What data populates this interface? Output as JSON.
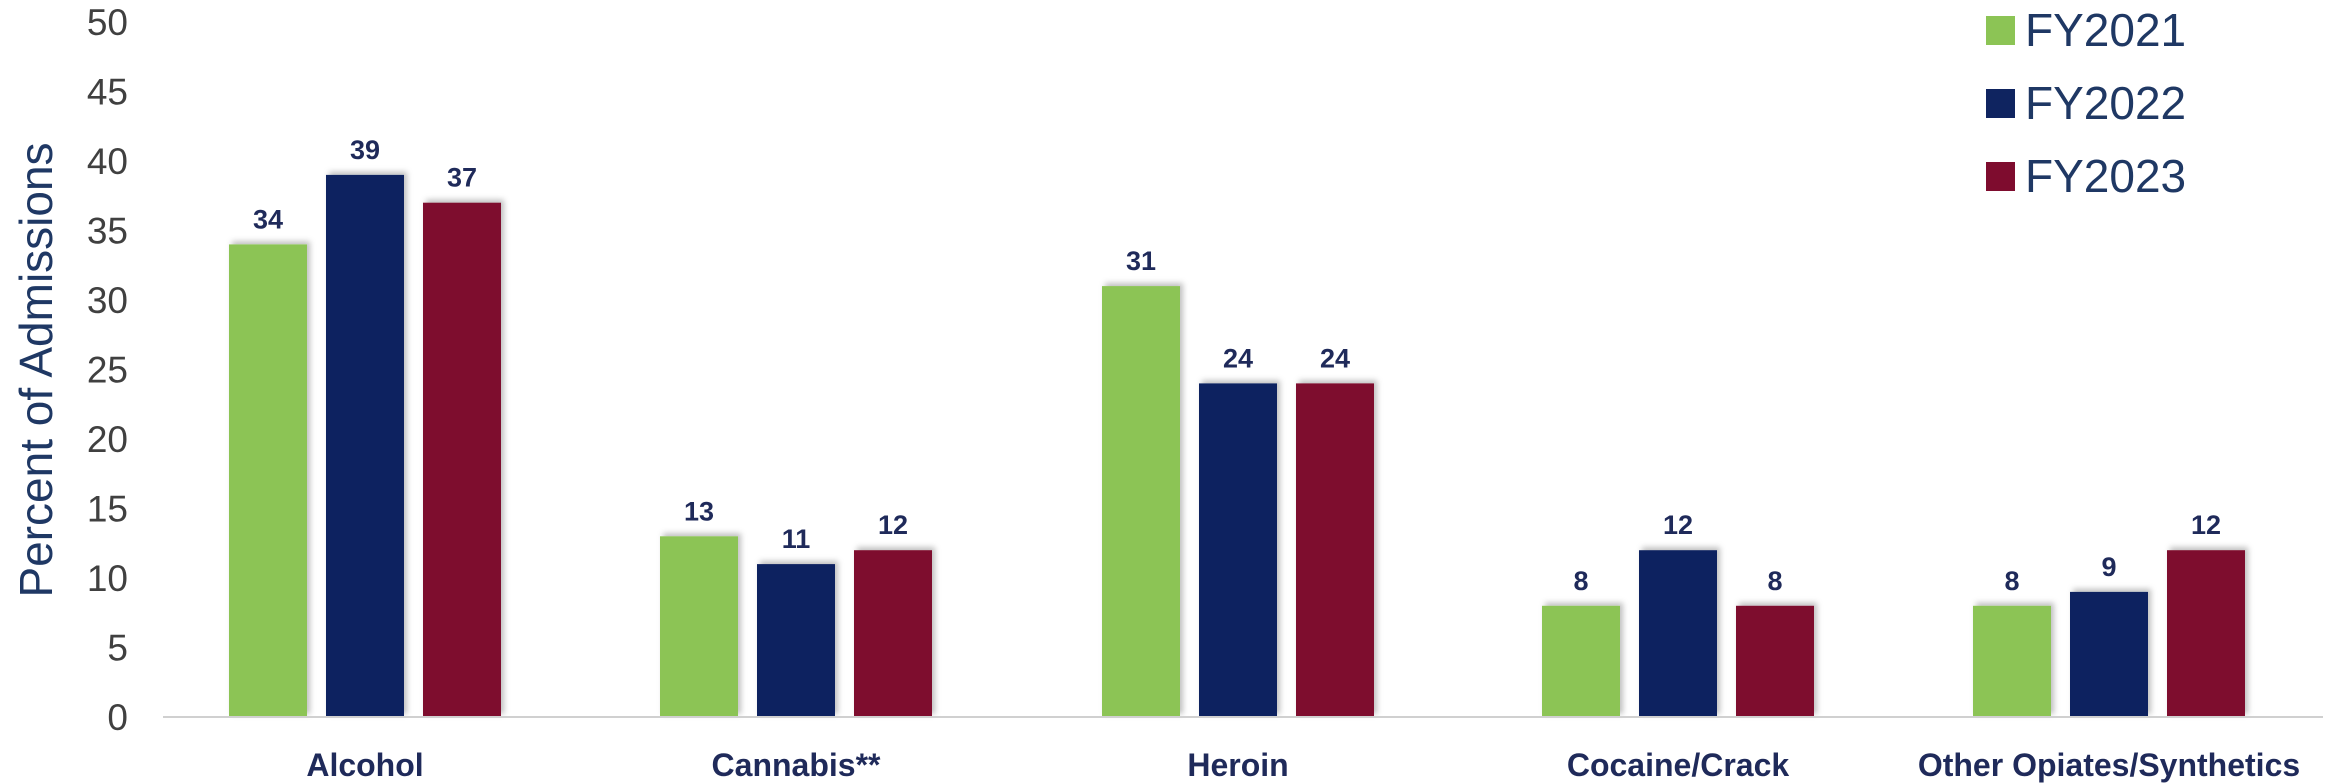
{
  "chart_data": {
    "type": "bar",
    "ylabel": "Percent of Admissions",
    "ylim": [
      0,
      50
    ],
    "yticks": [
      0,
      5,
      10,
      15,
      20,
      25,
      30,
      35,
      40,
      45,
      50
    ],
    "categories": [
      "Alcohol",
      "Cannabis**",
      "Heroin",
      "Cocaine/Crack",
      "Other Opiates/Synthetics"
    ],
    "legend_position": "top-right",
    "grid": false,
    "series": [
      {
        "name": "FY2021",
        "color": "#8cc455",
        "values": [
          34,
          13,
          31,
          8,
          8
        ]
      },
      {
        "name": "FY2022",
        "color": "#0f2460",
        "values": [
          39,
          11,
          24,
          12,
          9
        ]
      },
      {
        "name": "FY2023",
        "color": "#7e0c2e",
        "values": [
          37,
          12,
          24,
          8,
          12
        ]
      }
    ]
  }
}
